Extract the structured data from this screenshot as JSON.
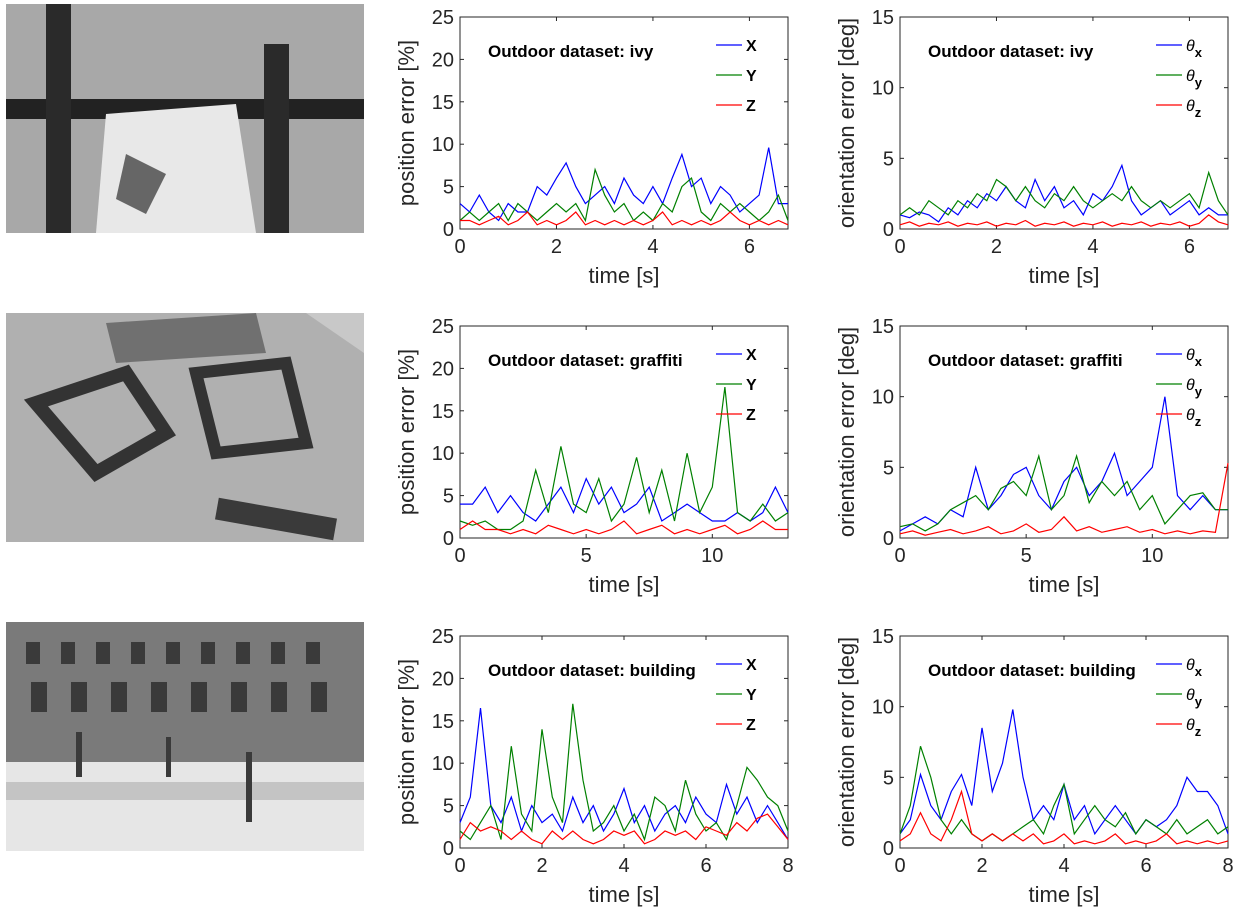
{
  "photos": [
    {
      "description_name": "ivy-photo"
    },
    {
      "description_name": "graffiti-photo"
    },
    {
      "description_name": "building-photo"
    }
  ],
  "colors": {
    "X": "#0000ff",
    "Y": "#008000",
    "Z": "#ff0000",
    "axis": "#262626"
  },
  "chart_data": [
    {
      "type": "line",
      "title": "Outdoor dataset: ivy",
      "xlabel": "time [s]",
      "ylabel": "position error [%]",
      "xlim": [
        0,
        6.8
      ],
      "ylim": [
        0,
        25
      ],
      "xticks": [
        0,
        2,
        4,
        6
      ],
      "yticks": [
        0,
        5,
        10,
        15,
        20,
        25
      ],
      "grid": false,
      "legend": "top-right",
      "x": [
        0,
        0.2,
        0.4,
        0.6,
        0.8,
        1.0,
        1.2,
        1.4,
        1.6,
        1.8,
        2.0,
        2.2,
        2.4,
        2.6,
        2.8,
        3.0,
        3.2,
        3.4,
        3.6,
        3.8,
        4.0,
        4.2,
        4.4,
        4.6,
        4.8,
        5.0,
        5.2,
        5.4,
        5.6,
        5.8,
        6.0,
        6.2,
        6.4,
        6.6,
        6.8
      ],
      "series": [
        {
          "name": "X",
          "label": "X",
          "values": [
            3,
            2,
            4,
            2,
            1,
            3,
            2,
            2,
            5,
            4,
            6,
            7.8,
            5,
            3,
            4,
            5,
            3,
            6,
            4,
            3,
            5,
            3,
            6,
            8.8,
            5,
            6,
            3,
            5,
            4,
            2,
            3,
            4,
            9.6,
            3,
            3
          ]
        },
        {
          "name": "Y",
          "label": "Y",
          "values": [
            1,
            2,
            1,
            2,
            3,
            1,
            3,
            2,
            1,
            2,
            3,
            2,
            3,
            1,
            7,
            4,
            2,
            3,
            1,
            2,
            1,
            3,
            2,
            5,
            6,
            2,
            1,
            3,
            2,
            3,
            2,
            1,
            2,
            4,
            1
          ]
        },
        {
          "name": "Z",
          "label": "Z",
          "values": [
            1,
            1,
            0.5,
            1,
            1.5,
            0.5,
            1,
            2,
            0.5,
            1,
            0.5,
            1,
            2,
            0.5,
            1,
            0.5,
            1,
            0.5,
            1,
            0.5,
            1,
            2,
            0.5,
            1,
            0.5,
            1,
            0.5,
            1,
            2,
            1,
            0.5,
            1,
            0.5,
            1,
            0.5
          ]
        }
      ]
    },
    {
      "type": "line",
      "title": "Outdoor dataset: ivy",
      "xlabel": "time [s]",
      "ylabel": "orientation error [deg]",
      "xlim": [
        0,
        6.8
      ],
      "ylim": [
        0,
        15
      ],
      "xticks": [
        0,
        2,
        4,
        6
      ],
      "yticks": [
        0,
        5,
        10,
        15
      ],
      "grid": false,
      "legend": "top-right",
      "x": [
        0,
        0.2,
        0.4,
        0.6,
        0.8,
        1.0,
        1.2,
        1.4,
        1.6,
        1.8,
        2.0,
        2.2,
        2.4,
        2.6,
        2.8,
        3.0,
        3.2,
        3.4,
        3.6,
        3.8,
        4.0,
        4.2,
        4.4,
        4.6,
        4.8,
        5.0,
        5.2,
        5.4,
        5.6,
        5.8,
        6.0,
        6.2,
        6.4,
        6.6,
        6.8
      ],
      "series": [
        {
          "name": "θx",
          "label": "θ",
          "sub": "x",
          "values": [
            1,
            0.8,
            1.2,
            1,
            0.5,
            1.5,
            1,
            2,
            1.5,
            2.5,
            2,
            3,
            2,
            1.5,
            3.5,
            2,
            3,
            1.5,
            2,
            1,
            2.5,
            2,
            3,
            4.5,
            2,
            1,
            1.5,
            2,
            1,
            1.5,
            2,
            1,
            1.5,
            1,
            1
          ]
        },
        {
          "name": "θy",
          "label": "θ",
          "sub": "y",
          "values": [
            1,
            1.5,
            1,
            2,
            1.5,
            1,
            2,
            1.5,
            2.5,
            2,
            3.5,
            3,
            2,
            3,
            2,
            1.5,
            2.5,
            2,
            3,
            2,
            1.5,
            2,
            2.5,
            2,
            3,
            2,
            1.5,
            2,
            1.5,
            2,
            2.5,
            1.5,
            4,
            2,
            1
          ]
        },
        {
          "name": "θz",
          "label": "θ",
          "sub": "z",
          "values": [
            0.3,
            0.5,
            0.2,
            0.4,
            0.3,
            0.5,
            0.2,
            0.4,
            0.3,
            0.5,
            0.2,
            0.4,
            0.3,
            0.6,
            0.2,
            0.4,
            0.3,
            0.5,
            0.2,
            0.4,
            0.3,
            0.5,
            0.2,
            0.4,
            0.3,
            0.5,
            0.2,
            0.4,
            0.3,
            0.5,
            0.2,
            0.4,
            1,
            0.5,
            0.3
          ]
        }
      ]
    },
    {
      "type": "line",
      "title": "Outdoor dataset: graffiti",
      "xlabel": "time [s]",
      "ylabel": "position error [%]",
      "xlim": [
        0,
        13
      ],
      "ylim": [
        0,
        25
      ],
      "xticks": [
        0,
        5,
        10
      ],
      "yticks": [
        0,
        5,
        10,
        15,
        20,
        25
      ],
      "grid": false,
      "legend": "top-right",
      "x": [
        0,
        0.5,
        1,
        1.5,
        2,
        2.5,
        3,
        3.5,
        4,
        4.5,
        5,
        5.5,
        6,
        6.5,
        7,
        7.5,
        8,
        8.5,
        9,
        9.5,
        10,
        10.5,
        11,
        11.5,
        12,
        12.5,
        13
      ],
      "series": [
        {
          "name": "X",
          "label": "X",
          "values": [
            4,
            4,
            6,
            3,
            5,
            3,
            2,
            4,
            6,
            3,
            7,
            4,
            6,
            3,
            4,
            6,
            2,
            3,
            4,
            3,
            2,
            2,
            3,
            2,
            3,
            6,
            3
          ]
        },
        {
          "name": "Y",
          "label": "Y",
          "values": [
            2,
            1.5,
            2,
            1,
            1,
            2,
            8,
            3,
            10.8,
            4,
            3,
            7,
            2,
            4,
            9.5,
            3,
            8,
            2,
            10,
            3,
            6,
            17.8,
            3,
            2,
            4,
            2,
            3
          ]
        },
        {
          "name": "Z",
          "label": "Z",
          "values": [
            1,
            2,
            1,
            1,
            0.5,
            1,
            0.5,
            1.5,
            1,
            0.5,
            1,
            0.5,
            1,
            2,
            0.5,
            1,
            1.5,
            0.5,
            1,
            0.5,
            1,
            1.5,
            0.5,
            1,
            2,
            1,
            1
          ]
        }
      ]
    },
    {
      "type": "line",
      "title": "Outdoor dataset: graffiti",
      "xlabel": "time [s]",
      "ylabel": "orientation error [deg]",
      "xlim": [
        0,
        13
      ],
      "ylim": [
        0,
        15
      ],
      "xticks": [
        0,
        5,
        10
      ],
      "yticks": [
        0,
        5,
        10,
        15
      ],
      "grid": false,
      "legend": "top-right",
      "x": [
        0,
        0.5,
        1,
        1.5,
        2,
        2.5,
        3,
        3.5,
        4,
        4.5,
        5,
        5.5,
        6,
        6.5,
        7,
        7.5,
        8,
        8.5,
        9,
        9.5,
        10,
        10.5,
        11,
        11.5,
        12,
        12.5,
        13
      ],
      "series": [
        {
          "name": "θx",
          "label": "θ",
          "sub": "x",
          "values": [
            0.5,
            1,
            1.5,
            1,
            2,
            1.5,
            5,
            2,
            3,
            4.5,
            5,
            3,
            2,
            4,
            5,
            3,
            4,
            6,
            3,
            4,
            5,
            10,
            3,
            2,
            3,
            2,
            2
          ]
        },
        {
          "name": "θy",
          "label": "θ",
          "sub": "y",
          "values": [
            0.8,
            1,
            0.5,
            1,
            2,
            2.5,
            3,
            2,
            3.5,
            4,
            3,
            5.8,
            2,
            3,
            5.8,
            2.5,
            4,
            3,
            4,
            2,
            3,
            1,
            2,
            3,
            3.2,
            2,
            2
          ]
        },
        {
          "name": "θz",
          "label": "θ",
          "sub": "z",
          "values": [
            0.3,
            0.5,
            0.2,
            0.4,
            0.6,
            0.3,
            0.5,
            0.8,
            0.3,
            0.5,
            1,
            0.4,
            0.6,
            1.5,
            0.5,
            0.8,
            0.4,
            0.6,
            0.8,
            0.4,
            0.6,
            0.3,
            0.5,
            0.3,
            0.5,
            0.4,
            5.3
          ]
        }
      ]
    },
    {
      "type": "line",
      "title": "Outdoor dataset: building",
      "xlabel": "time [s]",
      "ylabel": "position error [%]",
      "xlim": [
        0,
        8
      ],
      "ylim": [
        0,
        25
      ],
      "xticks": [
        0,
        2,
        4,
        6,
        8
      ],
      "yticks": [
        0,
        5,
        10,
        15,
        20,
        25
      ],
      "grid": false,
      "legend": "top-right",
      "x": [
        0,
        0.25,
        0.5,
        0.75,
        1,
        1.25,
        1.5,
        1.75,
        2,
        2.25,
        2.5,
        2.75,
        3,
        3.25,
        3.5,
        3.75,
        4,
        4.25,
        4.5,
        4.75,
        5,
        5.25,
        5.5,
        5.75,
        6,
        6.25,
        6.5,
        6.75,
        7,
        7.25,
        7.5,
        7.75,
        8
      ],
      "series": [
        {
          "name": "X",
          "label": "X",
          "values": [
            3,
            6,
            16.5,
            5,
            3,
            6,
            2,
            5,
            3,
            4,
            2,
            6,
            3,
            5,
            2,
            4,
            7,
            3,
            5,
            2,
            4,
            5,
            3,
            6,
            4,
            3,
            7.5,
            4,
            6,
            3,
            5,
            3,
            1
          ]
        },
        {
          "name": "Y",
          "label": "Y",
          "values": [
            2,
            1,
            3,
            5,
            1,
            12,
            4,
            2,
            14,
            6,
            3,
            17,
            8,
            2,
            3,
            5,
            2,
            4,
            1,
            6,
            5,
            2,
            8,
            4,
            2,
            3,
            1,
            5,
            9.5,
            8,
            6,
            5,
            2
          ]
        },
        {
          "name": "Z",
          "label": "Z",
          "values": [
            1,
            3,
            2,
            2.5,
            2,
            1,
            2,
            1,
            0.5,
            2,
            1,
            2,
            1,
            0.5,
            1,
            2,
            1.5,
            2,
            0.5,
            1,
            2,
            1.5,
            2,
            1,
            2.5,
            2,
            1.5,
            3,
            2,
            3.5,
            4,
            2.5,
            1
          ]
        }
      ]
    },
    {
      "type": "line",
      "title": "Outdoor dataset: building",
      "xlabel": "time [s]",
      "ylabel": "orientation error [deg]",
      "xlim": [
        0,
        8
      ],
      "ylim": [
        0,
        15
      ],
      "xticks": [
        0,
        2,
        4,
        6,
        8
      ],
      "yticks": [
        0,
        5,
        10,
        15
      ],
      "grid": false,
      "legend": "top-right",
      "x": [
        0,
        0.25,
        0.5,
        0.75,
        1,
        1.25,
        1.5,
        1.75,
        2,
        2.25,
        2.5,
        2.75,
        3,
        3.25,
        3.5,
        3.75,
        4,
        4.25,
        4.5,
        4.75,
        5,
        5.25,
        5.5,
        5.75,
        6,
        6.25,
        6.5,
        6.75,
        7,
        7.25,
        7.5,
        7.75,
        8
      ],
      "series": [
        {
          "name": "θx",
          "label": "θ",
          "sub": "x",
          "values": [
            1,
            2,
            5.2,
            3,
            2,
            4,
            5.2,
            3,
            8.5,
            4,
            6,
            9.8,
            5,
            2,
            3,
            2,
            4.5,
            2,
            3,
            1,
            2,
            3,
            2,
            1,
            2,
            1.5,
            2,
            3,
            5,
            4,
            4,
            3,
            1
          ]
        },
        {
          "name": "θy",
          "label": "θ",
          "sub": "y",
          "values": [
            1,
            3,
            7.2,
            5,
            2,
            1,
            2,
            1,
            0.5,
            1,
            0.5,
            1,
            1.5,
            2,
            1,
            3,
            4.5,
            1,
            2,
            3,
            2,
            1.5,
            2.5,
            1,
            2,
            1.5,
            1,
            2,
            1,
            1.5,
            2,
            1,
            1.5
          ]
        },
        {
          "name": "θz",
          "label": "θ",
          "sub": "z",
          "values": [
            0.5,
            1,
            2.5,
            1,
            0.5,
            2,
            4,
            1,
            0.5,
            1,
            0.5,
            1,
            0.5,
            1,
            0.3,
            0.5,
            1,
            0.3,
            0.5,
            0.3,
            0.5,
            1,
            0.3,
            0.5,
            0.3,
            0.5,
            1,
            0.3,
            0.5,
            0.3,
            0.5,
            0.3,
            0.5
          ]
        }
      ]
    }
  ]
}
